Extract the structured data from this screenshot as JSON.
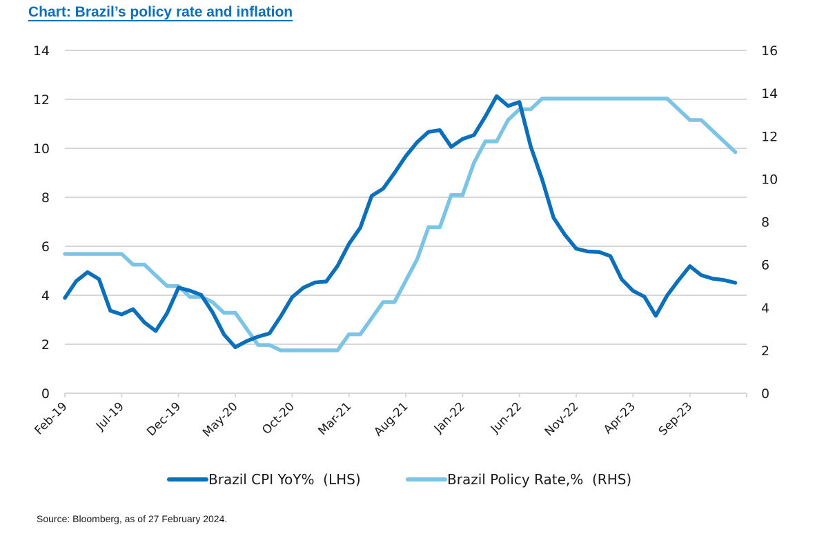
{
  "chart_data": {
    "type": "line",
    "title": "Chart: Brazil’s policy rate and inflation",
    "xlabel": "",
    "ylabel_left": "",
    "ylabel_right": "",
    "x": [
      "Feb-19",
      "Mar-19",
      "Apr-19",
      "May-19",
      "Jun-19",
      "Jul-19",
      "Aug-19",
      "Sep-19",
      "Oct-19",
      "Nov-19",
      "Dec-19",
      "Jan-20",
      "Feb-20",
      "Mar-20",
      "Apr-20",
      "May-20",
      "Jun-20",
      "Jul-20",
      "Aug-20",
      "Sep-20",
      "Oct-20",
      "Nov-20",
      "Dec-20",
      "Jan-21",
      "Feb-21",
      "Mar-21",
      "Apr-21",
      "May-21",
      "Jun-21",
      "Jul-21",
      "Aug-21",
      "Sep-21",
      "Oct-21",
      "Nov-21",
      "Dec-21",
      "Jan-22",
      "Feb-22",
      "Mar-22",
      "Apr-22",
      "May-22",
      "Jun-22",
      "Jul-22",
      "Aug-22",
      "Sep-22",
      "Oct-22",
      "Nov-22",
      "Dec-22",
      "Jan-23",
      "Feb-23",
      "Mar-23",
      "Apr-23",
      "May-23",
      "Jun-23",
      "Jul-23",
      "Aug-23",
      "Sep-23",
      "Oct-23",
      "Nov-23",
      "Dec-23",
      "Jan-24"
    ],
    "x_ticks": [
      "Feb-19",
      "Jul-19",
      "Dec-19",
      "May-20",
      "Oct-20",
      "Mar-21",
      "Aug-21",
      "Jan-22",
      "Jun-22",
      "Nov-22",
      "Apr-23",
      "Sep-23"
    ],
    "x_tick_count_total": 13,
    "y_left": {
      "min": 0,
      "max": 14,
      "step": 2,
      "ticks": [
        "0",
        "2",
        "4",
        "6",
        "8",
        "10",
        "12",
        "14"
      ]
    },
    "y_right": {
      "min": 0,
      "max": 16,
      "step": 2,
      "ticks": [
        "0",
        "2",
        "4",
        "6",
        "8",
        "10",
        "12",
        "14",
        "16"
      ]
    },
    "grid": true,
    "legend_position": "bottom",
    "series": [
      {
        "name": "Brazil CPI YoY%  (LHS)",
        "axis": "left",
        "color": "#0b6fba",
        "values": [
          3.89,
          4.58,
          4.94,
          4.66,
          3.37,
          3.22,
          3.43,
          2.89,
          2.54,
          3.27,
          4.31,
          4.19,
          4.01,
          3.3,
          2.4,
          1.88,
          2.13,
          2.31,
          2.44,
          3.14,
          3.92,
          4.31,
          4.52,
          4.56,
          5.2,
          6.1,
          6.76,
          8.06,
          8.35,
          8.99,
          9.68,
          10.25,
          10.67,
          10.74,
          10.06,
          10.38,
          10.54,
          11.3,
          12.13,
          11.73,
          11.89,
          10.07,
          8.73,
          7.17,
          6.47,
          5.9,
          5.79,
          5.77,
          5.6,
          4.65,
          4.18,
          3.94,
          3.16,
          3.99,
          4.61,
          5.19,
          4.82,
          4.68,
          4.62,
          4.51
        ]
      },
      {
        "name": "Brazil Policy Rate,%  (RHS)",
        "axis": "right",
        "color": "#7cc4e6",
        "values": [
          6.5,
          6.5,
          6.5,
          6.5,
          6.5,
          6.5,
          6.0,
          6.0,
          5.5,
          5.0,
          5.0,
          4.5,
          4.5,
          4.25,
          3.75,
          3.75,
          3.0,
          2.25,
          2.25,
          2.0,
          2.0,
          2.0,
          2.0,
          2.0,
          2.0,
          2.75,
          2.75,
          3.5,
          4.25,
          4.25,
          5.25,
          6.25,
          7.75,
          7.75,
          9.25,
          9.25,
          10.75,
          11.75,
          11.75,
          12.75,
          13.25,
          13.25,
          13.75,
          13.75,
          13.75,
          13.75,
          13.75,
          13.75,
          13.75,
          13.75,
          13.75,
          13.75,
          13.75,
          13.75,
          13.25,
          12.75,
          12.75,
          12.25,
          11.75,
          11.25
        ]
      }
    ]
  },
  "legend": {
    "cpi_label": "Brazil CPI YoY%  (LHS)",
    "rate_label": "Brazil Policy Rate,%  (RHS)"
  },
  "source": "Source: Bloomberg, as of 27 February 2024."
}
